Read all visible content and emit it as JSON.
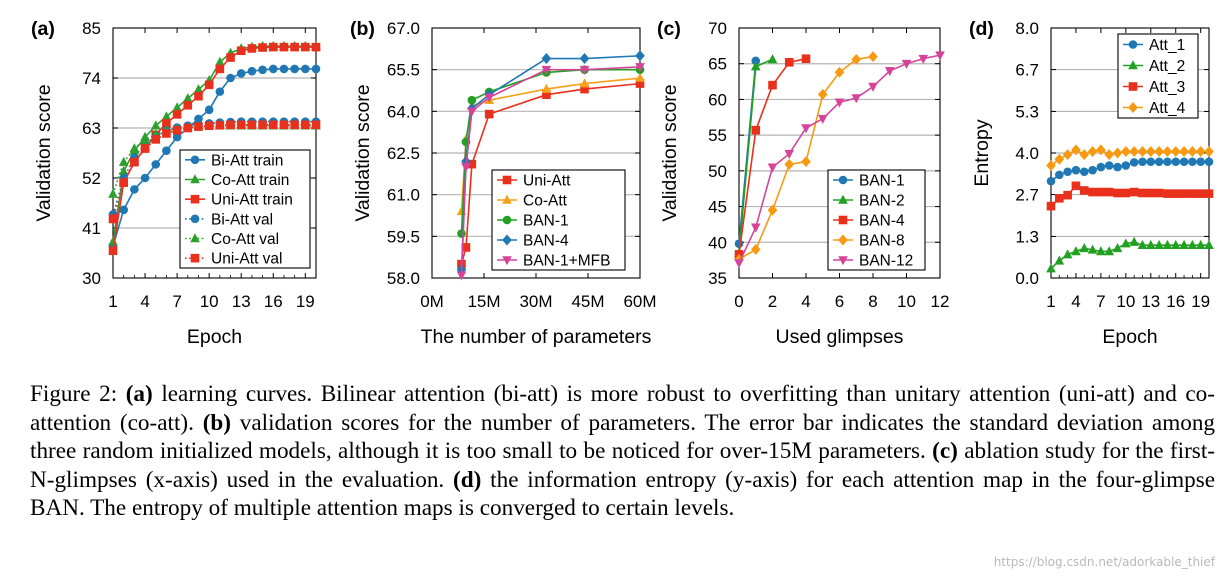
{
  "chart_data": [
    {
      "id": "a",
      "type": "line",
      "panel_label": "(a)",
      "xlabel": "Epoch",
      "ylabel": "Validation score",
      "xlim": [
        1,
        20
      ],
      "ylim": [
        30,
        85
      ],
      "xticks": [
        1,
        4,
        7,
        10,
        13,
        16,
        19
      ],
      "xtick_labels": [
        "1",
        "4",
        "7",
        "10",
        "13",
        "16",
        "19"
      ],
      "yticks": [
        30,
        41,
        52,
        63,
        74,
        85
      ],
      "ytick_labels": [
        "30",
        "41",
        "52",
        "63",
        "74",
        "85"
      ],
      "legend_position": "bottom-right",
      "x": [
        1,
        2,
        3,
        4,
        5,
        6,
        7,
        8,
        9,
        10,
        11,
        12,
        13,
        14,
        15,
        16,
        17,
        18,
        19,
        20
      ],
      "series": [
        {
          "name": "Bi-Att train",
          "color": "#1f77b4",
          "marker": "circle",
          "style": "solid",
          "values": [
            37,
            45,
            49.5,
            52,
            55,
            58,
            61,
            63,
            65,
            67,
            71,
            74,
            75,
            75.5,
            75.8,
            76,
            76,
            76,
            76,
            76
          ]
        },
        {
          "name": "Co-Att train",
          "color": "#2ca02c",
          "marker": "triangle",
          "style": "solid",
          "values": [
            38,
            53.5,
            58,
            61,
            63.5,
            65.5,
            67.5,
            69.5,
            71.5,
            73.5,
            77.5,
            79.5,
            80.5,
            80.8,
            81,
            81,
            81,
            81,
            81,
            81
          ]
        },
        {
          "name": "Uni-Att train",
          "color": "#e8301c",
          "marker": "square",
          "style": "solid",
          "values": [
            36,
            51,
            55.5,
            58.5,
            61.5,
            64,
            66,
            68,
            70,
            72.5,
            76,
            78.5,
            80,
            80.5,
            80.7,
            80.8,
            80.8,
            80.8,
            80.8,
            80.8
          ]
        },
        {
          "name": "Bi-Att val",
          "color": "#1f77b4",
          "marker": "circle",
          "style": "dotted",
          "values": [
            44,
            52,
            56.5,
            59.5,
            61.2,
            62.4,
            63.1,
            63.5,
            63.8,
            64,
            64.2,
            64.3,
            64.4,
            64.4,
            64.4,
            64.4,
            64.4,
            64.4,
            64.4,
            64.4
          ]
        },
        {
          "name": "Co-Att val",
          "color": "#2ca02c",
          "marker": "triangle",
          "style": "dotted",
          "values": [
            48.5,
            55.5,
            58.5,
            60.4,
            61.6,
            62.4,
            62.8,
            63.1,
            63.3,
            63.4,
            63.5,
            63.5,
            63.5,
            63.5,
            63.5,
            63.5,
            63.5,
            63.5,
            63.5,
            63.5
          ]
        },
        {
          "name": "Uni-Att val",
          "color": "#e8301c",
          "marker": "square",
          "style": "dotted",
          "values": [
            43,
            51,
            55.5,
            58.5,
            60.5,
            61.8,
            62.5,
            63,
            63.3,
            63.5,
            63.6,
            63.7,
            63.7,
            63.7,
            63.7,
            63.7,
            63.7,
            63.7,
            63.7,
            63.7
          ]
        }
      ]
    },
    {
      "id": "b",
      "type": "line",
      "panel_label": "(b)",
      "xlabel": "The number of parameters",
      "ylabel": "Validation score",
      "xlim": [
        0,
        60
      ],
      "ylim": [
        58,
        67
      ],
      "xticks": [
        0,
        15,
        30,
        45,
        60
      ],
      "xtick_labels": [
        "0M",
        "15M",
        "30M",
        "45M",
        "60M"
      ],
      "yticks": [
        58,
        59.5,
        61,
        62.5,
        64,
        65.5,
        67
      ],
      "ytick_labels": [
        "58.0",
        "59.5",
        "61.0",
        "62.5",
        "64.0",
        "65.5",
        "67.0"
      ],
      "legend_position": "bottom-right",
      "series": [
        {
          "name": "Uni-Att",
          "color": "#e8301c",
          "marker": "square",
          "x": [
            8.5,
            9.8,
            11.5,
            16.5,
            33,
            44,
            60
          ],
          "values": [
            58.5,
            59.1,
            62.1,
            63.9,
            64.6,
            64.8,
            65.0
          ]
        },
        {
          "name": "Co-Att",
          "color": "#f7a11a",
          "marker": "triangle",
          "x": [
            8.5,
            9.8,
            11.5,
            16.5,
            33,
            44,
            60
          ],
          "values": [
            60.4,
            63.0,
            64.2,
            64.4,
            64.8,
            65.0,
            65.2
          ]
        },
        {
          "name": "BAN-1",
          "color": "#22a022",
          "marker": "circle",
          "x": [
            8.5,
            9.8,
            11.5,
            16.5,
            33,
            44,
            60
          ],
          "values": [
            59.6,
            62.9,
            64.4,
            64.7,
            65.4,
            65.5,
            65.5
          ]
        },
        {
          "name": "BAN-4",
          "color": "#1f77b4",
          "marker": "diamond",
          "x": [
            8.5,
            9.8,
            11.5,
            16.5,
            33,
            44,
            60
          ],
          "values": [
            58.3,
            62.2,
            64.1,
            64.6,
            65.9,
            65.9,
            66.0
          ]
        },
        {
          "name": "BAN-1+MFB",
          "color": "#d6449a",
          "marker": "triangle-down",
          "x": [
            8.5,
            9.8,
            11.5,
            16.5,
            33,
            44,
            60
          ],
          "values": [
            58.1,
            62.0,
            64.0,
            64.5,
            65.5,
            65.5,
            65.6
          ]
        }
      ]
    },
    {
      "id": "c",
      "type": "line",
      "panel_label": "(c)",
      "xlabel": "Used glimpses",
      "ylabel": "Validation score",
      "xlim": [
        0,
        12
      ],
      "ylim": [
        35,
        70
      ],
      "xticks": [
        0,
        2,
        4,
        6,
        8,
        10,
        12
      ],
      "xtick_labels": [
        "0",
        "2",
        "4",
        "6",
        "8",
        "10",
        "12"
      ],
      "yticks": [
        35,
        40,
        45,
        50,
        55,
        60,
        65,
        70
      ],
      "ytick_labels": [
        "35",
        "40",
        "45",
        "50",
        "55",
        "60",
        "65",
        "70"
      ],
      "legend_position": "bottom-right",
      "series": [
        {
          "name": "BAN-1",
          "color": "#1f77b4",
          "marker": "circle",
          "x": [
            0,
            1
          ],
          "values": [
            39.8,
            65.4
          ]
        },
        {
          "name": "BAN-2",
          "color": "#22a022",
          "marker": "triangle",
          "x": [
            0,
            1,
            2
          ],
          "values": [
            38.5,
            64.6,
            65.6
          ]
        },
        {
          "name": "BAN-4",
          "color": "#e8301c",
          "marker": "square",
          "x": [
            0,
            1,
            2,
            3,
            4
          ],
          "values": [
            38.3,
            55.7,
            62.0,
            65.2,
            65.7
          ]
        },
        {
          "name": "BAN-8",
          "color": "#f79a12",
          "marker": "diamond",
          "x": [
            0,
            1,
            2,
            3,
            4,
            5,
            6,
            7,
            8
          ],
          "values": [
            37.6,
            39.0,
            44.5,
            50.9,
            51.3,
            60.7,
            63.8,
            65.6,
            66.0
          ]
        },
        {
          "name": "BAN-12",
          "color": "#d6449a",
          "marker": "triangle-down",
          "x": [
            0,
            1,
            2,
            3,
            4,
            5,
            6,
            7,
            8,
            9,
            10,
            11,
            12
          ],
          "values": [
            37.1,
            42.1,
            50.5,
            52.4,
            56.0,
            57.3,
            59.6,
            60.2,
            61.8,
            64.0,
            65.0,
            65.7,
            66.2
          ]
        }
      ]
    },
    {
      "id": "d",
      "type": "line",
      "panel_label": "(d)",
      "xlabel": "Epoch",
      "ylabel": "Entropy",
      "xlim": [
        1,
        20
      ],
      "ylim": [
        0,
        8
      ],
      "xticks": [
        1,
        4,
        7,
        10,
        13,
        16,
        19
      ],
      "xtick_labels": [
        "1",
        "4",
        "7",
        "10",
        "13",
        "16",
        "19"
      ],
      "yticks": [
        0,
        1.33,
        2.67,
        4,
        5.33,
        6.67,
        8
      ],
      "ytick_labels": [
        "0.0",
        "1.3",
        "2.7",
        "4.0",
        "5.3",
        "6.7",
        "8.0"
      ],
      "legend_position": "top-right",
      "x": [
        1,
        2,
        3,
        4,
        5,
        6,
        7,
        8,
        9,
        10,
        11,
        12,
        13,
        14,
        15,
        16,
        17,
        18,
        19,
        20
      ],
      "series": [
        {
          "name": "Att_1",
          "color": "#1f77b4",
          "marker": "circle",
          "values": [
            3.1,
            3.3,
            3.4,
            3.45,
            3.4,
            3.45,
            3.55,
            3.6,
            3.55,
            3.6,
            3.7,
            3.72,
            3.72,
            3.72,
            3.72,
            3.72,
            3.72,
            3.72,
            3.72,
            3.72
          ]
        },
        {
          "name": "Att_2",
          "color": "#22a022",
          "marker": "triangle",
          "values": [
            0.3,
            0.55,
            0.75,
            0.85,
            0.95,
            0.9,
            0.85,
            0.85,
            0.95,
            1.1,
            1.15,
            1.05,
            1.05,
            1.05,
            1.05,
            1.05,
            1.05,
            1.05,
            1.05,
            1.05
          ]
        },
        {
          "name": "Att_3",
          "color": "#e8301c",
          "marker": "square",
          "values": [
            2.3,
            2.55,
            2.65,
            2.95,
            2.8,
            2.75,
            2.75,
            2.75,
            2.72,
            2.72,
            2.75,
            2.72,
            2.72,
            2.72,
            2.7,
            2.7,
            2.7,
            2.7,
            2.7,
            2.7
          ]
        },
        {
          "name": "Att_4",
          "color": "#f79a12",
          "marker": "diamond",
          "values": [
            3.6,
            3.8,
            3.95,
            4.1,
            3.95,
            4.05,
            4.1,
            3.95,
            4.0,
            4.05,
            4.05,
            4.05,
            4.05,
            4.05,
            4.05,
            4.05,
            4.05,
            4.05,
            4.05,
            4.05
          ]
        }
      ]
    }
  ],
  "caption": {
    "fig_label": "Figure 2:",
    "a_label": "(a)",
    "a_text": "learning curves. Bilinear attention (bi-att) is more robust to overfitting than unitary attention (uni-att) and co-attention (co-att).",
    "b_label": "(b)",
    "b_text": "validation scores for the number of parameters. The error bar indicates the standard deviation among three random initialized models, although it is too small to be noticed for over-15M parameters.",
    "c_label": "(c)",
    "c_text": "ablation study for the first-N-glimpses (x-axis) used in the evaluation.",
    "d_label": "(d)",
    "d_text": "the information entropy (y-axis) for each attention map in the four-glimpse BAN. The entropy of multiple attention maps is converged to certain levels."
  },
  "watermark": "https://blog.csdn.net/adorkable_thief"
}
